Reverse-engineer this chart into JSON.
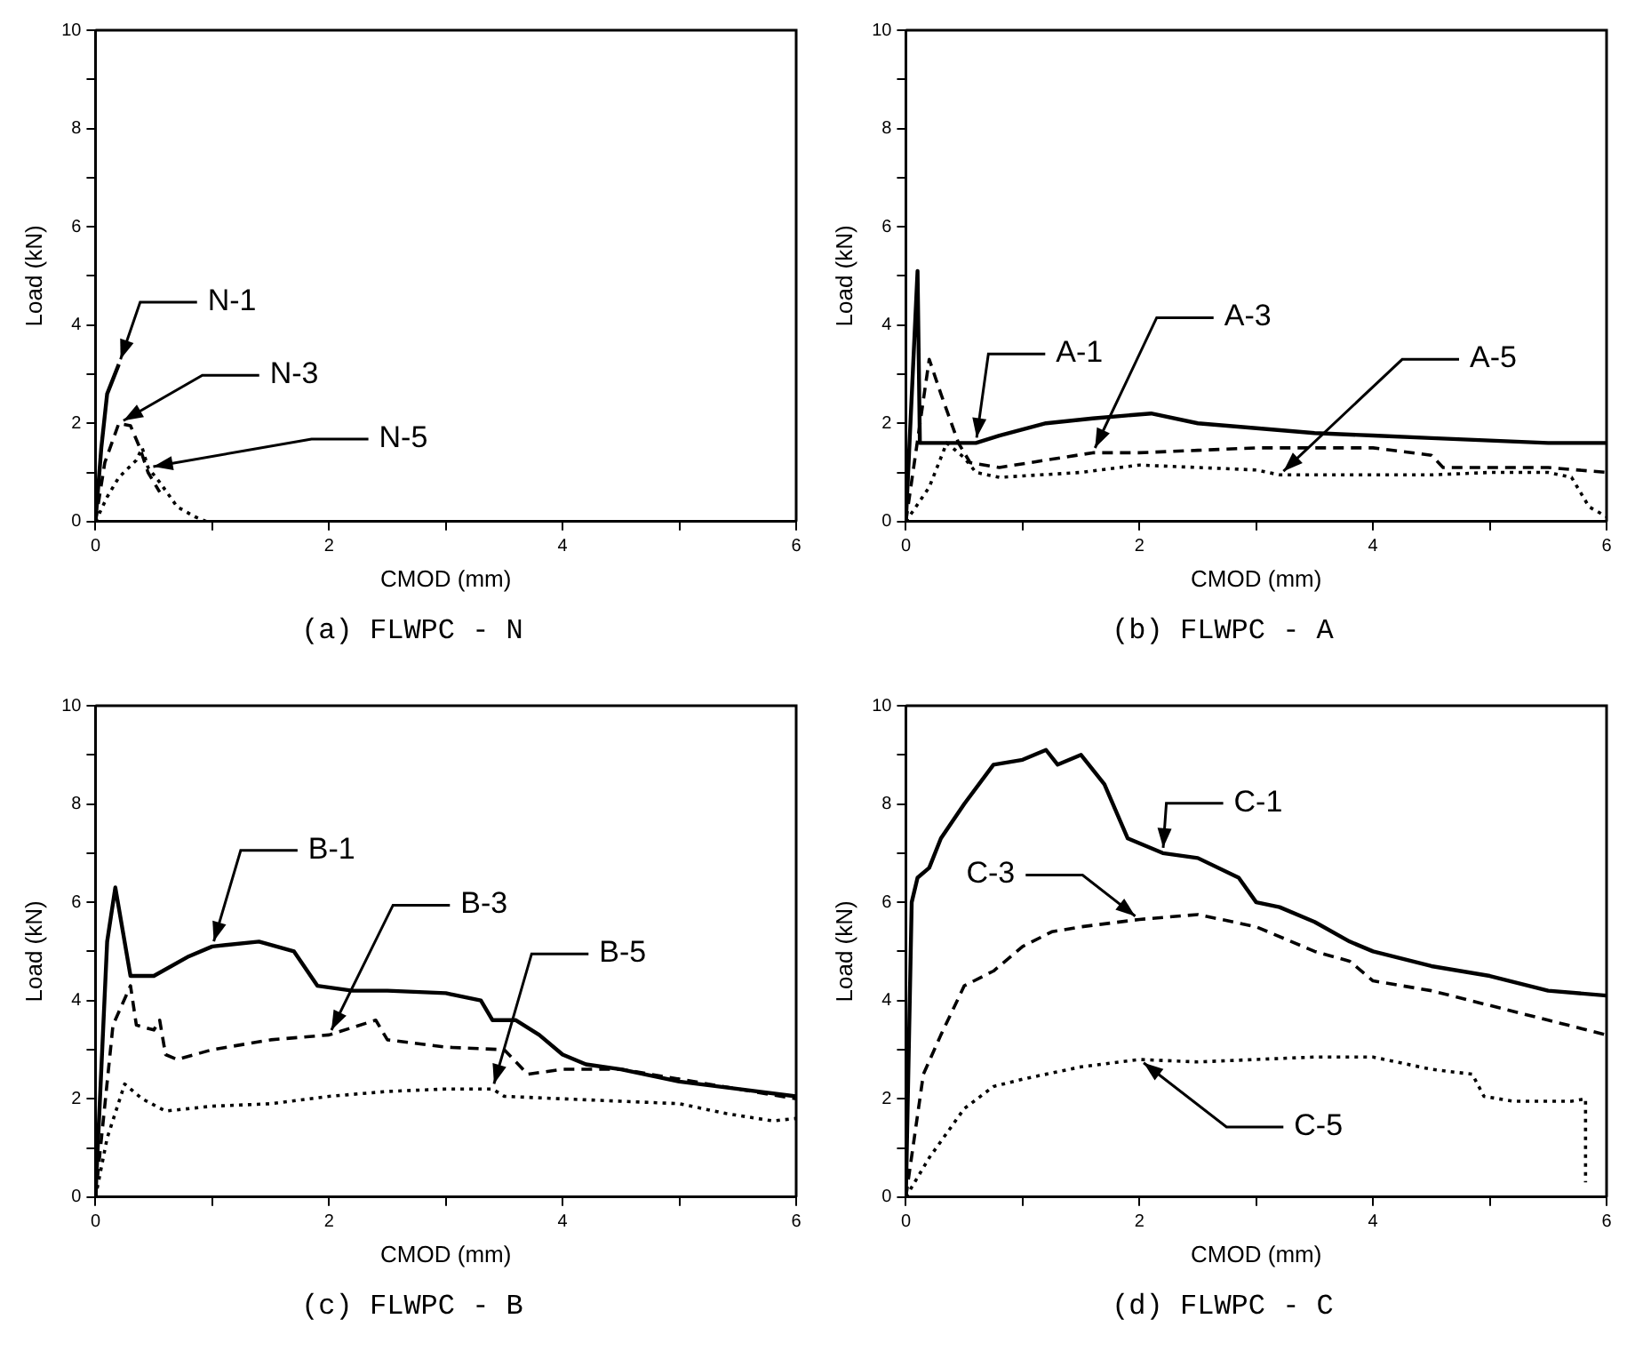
{
  "chart_data": [
    {
      "type": "line",
      "title": "(a) FLWPC - N",
      "xlabel": "CMOD (mm)",
      "ylabel": "Load (kN)",
      "xlim": [
        0,
        6
      ],
      "ylim": [
        0,
        10
      ],
      "xticks": [
        0,
        {
          "value": 1,
          "label": null
        },
        2,
        {
          "value": 3,
          "label": null
        },
        4,
        {
          "value": 5,
          "label": null
        },
        6
      ],
      "yticks": [
        0,
        {
          "value": 1,
          "label": null
        },
        2,
        {
          "value": 3,
          "label": null
        },
        4,
        {
          "value": 5,
          "label": null
        },
        6,
        {
          "value": 7,
          "label": null
        },
        8,
        {
          "value": 9,
          "label": null
        },
        10
      ],
      "grid": false,
      "legend": false,
      "marker": "none",
      "series": [
        {
          "name": "N-1",
          "color": "#000000",
          "line_style": "solid",
          "x": [
            0,
            0.05,
            0.1,
            0.2
          ],
          "values": [
            0,
            1.5,
            2.6,
            3.2
          ]
        },
        {
          "name": "N-3",
          "color": "#000000",
          "line_style": "dashed",
          "x": [
            0,
            0.08,
            0.2,
            0.3,
            0.38,
            0.45,
            0.55
          ],
          "values": [
            0,
            1.2,
            2.0,
            1.95,
            1.5,
            1.0,
            0.6
          ]
        },
        {
          "name": "N-5",
          "color": "#000000",
          "line_style": "dotted",
          "x": [
            0,
            0.1,
            0.2,
            0.35,
            0.4,
            0.45,
            0.55,
            0.7,
            0.85,
            0.95
          ],
          "values": [
            0,
            0.5,
            0.9,
            1.25,
            1.5,
            1.1,
            0.8,
            0.3,
            0.1,
            0
          ]
        }
      ]
    },
    {
      "type": "line",
      "title": "(b) FLWPC - A",
      "xlabel": "CMOD (mm)",
      "ylabel": "Load (kN)",
      "xlim": [
        0,
        6
      ],
      "ylim": [
        0,
        10
      ],
      "xticks": [
        0,
        {
          "value": 1,
          "label": null
        },
        2,
        {
          "value": 3,
          "label": null
        },
        4,
        {
          "value": 5,
          "label": null
        },
        6
      ],
      "yticks": [
        0,
        {
          "value": 1,
          "label": null
        },
        2,
        {
          "value": 3,
          "label": null
        },
        4,
        {
          "value": 5,
          "label": null
        },
        6,
        {
          "value": 7,
          "label": null
        },
        8,
        {
          "value": 9,
          "label": null
        },
        10
      ],
      "grid": false,
      "legend": false,
      "marker": "none",
      "series": [
        {
          "name": "A-1",
          "color": "#000000",
          "line_style": "solid",
          "x": [
            0,
            0.1,
            0.12,
            0.6,
            0.8,
            1.2,
            1.6,
            2.1,
            2.5,
            3,
            3.5,
            4,
            4.5,
            5,
            5.5,
            6
          ],
          "values": [
            0,
            5.1,
            1.6,
            1.6,
            1.75,
            2.0,
            2.1,
            2.2,
            2.0,
            1.9,
            1.8,
            1.75,
            1.7,
            1.65,
            1.6,
            1.6
          ]
        },
        {
          "name": "A-3",
          "color": "#000000",
          "line_style": "dashed",
          "x": [
            0,
            0.2,
            0.3,
            0.45,
            0.55,
            0.8,
            1.2,
            1.6,
            2,
            2.5,
            3,
            3.5,
            4,
            4.5,
            4.6,
            5,
            5.5,
            6
          ],
          "values": [
            0,
            3.3,
            2.6,
            1.6,
            1.2,
            1.1,
            1.25,
            1.4,
            1.4,
            1.45,
            1.5,
            1.5,
            1.5,
            1.35,
            1.1,
            1.1,
            1.1,
            1.0
          ]
        },
        {
          "name": "A-5",
          "color": "#000000",
          "line_style": "dotted",
          "x": [
            0,
            0.2,
            0.35,
            0.5,
            0.6,
            0.8,
            1.5,
            2,
            2.5,
            3,
            3.2,
            4,
            4.5,
            5,
            5.5,
            5.7,
            5.85,
            6
          ],
          "values": [
            0,
            0.7,
            1.6,
            1.3,
            1.0,
            0.9,
            1.0,
            1.15,
            1.1,
            1.05,
            0.95,
            0.95,
            0.95,
            1.0,
            1.0,
            0.9,
            0.3,
            0.1
          ]
        }
      ]
    },
    {
      "type": "line",
      "title": "(c) FLWPC - B",
      "xlabel": "CMOD (mm)",
      "ylabel": "Load (kN)",
      "xlim": [
        0,
        6
      ],
      "ylim": [
        0,
        10
      ],
      "xticks": [
        0,
        {
          "value": 1,
          "label": null
        },
        2,
        {
          "value": 3,
          "label": null
        },
        4,
        {
          "value": 5,
          "label": null
        },
        6
      ],
      "yticks": [
        0,
        {
          "value": 1,
          "label": null
        },
        2,
        {
          "value": 3,
          "label": null
        },
        4,
        {
          "value": 5,
          "label": null
        },
        6,
        {
          "value": 7,
          "label": null
        },
        8,
        {
          "value": 9,
          "label": null
        },
        10
      ],
      "grid": false,
      "legend": false,
      "marker": "none",
      "series": [
        {
          "name": "B-1",
          "color": "#000000",
          "line_style": "solid",
          "x": [
            0,
            0.1,
            0.17,
            0.3,
            0.5,
            0.8,
            1,
            1.4,
            1.7,
            1.9,
            2.2,
            2.5,
            3,
            3.3,
            3.4,
            3.6,
            3.8,
            4,
            4.2,
            4.5,
            5,
            5.5,
            6
          ],
          "values": [
            0,
            5.2,
            6.3,
            4.5,
            4.5,
            4.9,
            5.1,
            5.2,
            5.0,
            4.3,
            4.2,
            4.2,
            4.15,
            4.0,
            3.6,
            3.6,
            3.3,
            2.9,
            2.7,
            2.6,
            2.35,
            2.2,
            2.05
          ]
        },
        {
          "name": "B-3",
          "color": "#000000",
          "line_style": "dashed",
          "x": [
            0,
            0.15,
            0.3,
            0.35,
            0.5,
            0.55,
            0.6,
            0.7,
            1,
            1.5,
            2,
            2.4,
            2.5,
            3,
            3.5,
            3.7,
            4,
            4.5,
            5,
            5.5,
            6
          ],
          "values": [
            0,
            3.5,
            4.3,
            3.5,
            3.4,
            3.6,
            2.9,
            2.8,
            3.0,
            3.2,
            3.3,
            3.6,
            3.2,
            3.05,
            3.0,
            2.5,
            2.6,
            2.6,
            2.4,
            2.2,
            2.0
          ]
        },
        {
          "name": "B-5",
          "color": "#000000",
          "line_style": "dotted",
          "x": [
            0,
            0.1,
            0.25,
            0.4,
            0.6,
            1,
            1.5,
            2,
            2.5,
            3,
            3.4,
            3.5,
            4,
            4.5,
            5,
            5.4,
            5.8,
            6
          ],
          "values": [
            0,
            1.2,
            2.3,
            2.0,
            1.75,
            1.85,
            1.9,
            2.05,
            2.15,
            2.2,
            2.2,
            2.05,
            2.0,
            1.95,
            1.9,
            1.7,
            1.55,
            1.6
          ]
        }
      ]
    },
    {
      "type": "line",
      "title": "(d) FLWPC - C",
      "xlabel": "CMOD (mm)",
      "ylabel": "Load (kN)",
      "xlim": [
        0,
        6
      ],
      "ylim": [
        0,
        10
      ],
      "xticks": [
        0,
        {
          "value": 1,
          "label": null
        },
        2,
        {
          "value": 3,
          "label": null
        },
        4,
        {
          "value": 5,
          "label": null
        },
        6
      ],
      "yticks": [
        0,
        {
          "value": 1,
          "label": null
        },
        2,
        {
          "value": 3,
          "label": null
        },
        4,
        {
          "value": 5,
          "label": null
        },
        6,
        {
          "value": 7,
          "label": null
        },
        8,
        {
          "value": 9,
          "label": null
        },
        10
      ],
      "grid": false,
      "legend": false,
      "marker": "none",
      "series": [
        {
          "name": "C-1",
          "color": "#000000",
          "line_style": "solid",
          "x": [
            0,
            0.05,
            0.1,
            0.2,
            0.3,
            0.5,
            0.75,
            1,
            1.2,
            1.3,
            1.5,
            1.7,
            1.9,
            2.2,
            2.5,
            2.85,
            3,
            3.2,
            3.5,
            3.8,
            4,
            4.5,
            5,
            5.5,
            6
          ],
          "values": [
            0,
            6.0,
            6.5,
            6.7,
            7.3,
            8.0,
            8.8,
            8.9,
            9.1,
            8.8,
            9.0,
            8.4,
            7.3,
            7.0,
            6.9,
            6.5,
            6.0,
            5.9,
            5.6,
            5.2,
            5.0,
            4.7,
            4.5,
            4.2,
            4.1
          ]
        },
        {
          "name": "C-3",
          "color": "#000000",
          "line_style": "dashed",
          "x": [
            0,
            0.15,
            0.3,
            0.5,
            0.75,
            1,
            1.25,
            1.5,
            2,
            2.5,
            3,
            3.5,
            3.8,
            4,
            4.5,
            5,
            5.5,
            6
          ],
          "values": [
            0,
            2.5,
            3.3,
            4.3,
            4.6,
            5.1,
            5.4,
            5.5,
            5.65,
            5.75,
            5.5,
            5.0,
            4.8,
            4.4,
            4.2,
            3.9,
            3.6,
            3.3
          ]
        },
        {
          "name": "C-5",
          "color": "#000000",
          "line_style": "dotted",
          "x": [
            0,
            0.2,
            0.5,
            0.75,
            1,
            1.5,
            2,
            2.5,
            3,
            3.5,
            4,
            4.5,
            4.85,
            4.95,
            5.2,
            5.7,
            5.82,
            5.82
          ],
          "values": [
            0,
            0.8,
            1.8,
            2.25,
            2.4,
            2.65,
            2.8,
            2.75,
            2.8,
            2.85,
            2.85,
            2.6,
            2.5,
            2.05,
            1.95,
            1.95,
            2.0,
            0.3
          ]
        }
      ]
    }
  ]
}
